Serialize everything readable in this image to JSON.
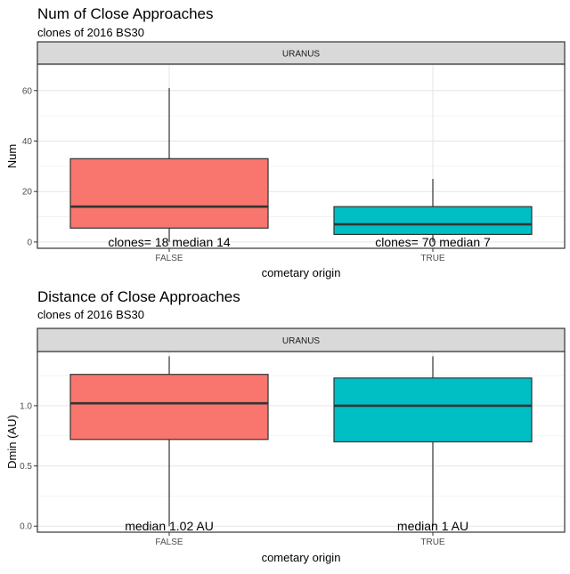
{
  "chart_data": [
    {
      "type": "boxplot",
      "title": "Num of Close Approaches",
      "subtitle": "clones of 2016 BS30",
      "facet_label": "URANUS",
      "xlabel": "cometary origin",
      "ylabel": "Num",
      "ylim": [
        -2.5,
        70.5
      ],
      "yticks": [
        0,
        20,
        40,
        60
      ],
      "ytick_labels": [
        "0",
        "20",
        "40",
        "60"
      ],
      "grid": true,
      "categories": [
        "FALSE",
        "TRUE"
      ],
      "boxes": [
        {
          "category": "FALSE",
          "min": 0,
          "q1": 5.5,
          "median": 14,
          "q3": 33,
          "max": 61,
          "color": "#F8766D",
          "annotation": "clones= 18 median 14"
        },
        {
          "category": "TRUE",
          "min": 0,
          "q1": 3,
          "median": 7,
          "q3": 14,
          "max": 25,
          "color": "#00BFC4",
          "annotation": "clones= 70 median 7"
        }
      ],
      "annotation_y": 0
    },
    {
      "type": "boxplot",
      "title": "Distance of Close Approaches",
      "subtitle": "clones of 2016 BS30",
      "facet_label": "URANUS",
      "xlabel": "cometary origin",
      "ylabel": "Dmin (AU)",
      "ylim": [
        -0.05,
        1.45
      ],
      "yticks": [
        0.0,
        0.5,
        1.0
      ],
      "ytick_labels": [
        "0.0",
        "0.5",
        "1.0"
      ],
      "grid": true,
      "categories": [
        "FALSE",
        "TRUE"
      ],
      "boxes": [
        {
          "category": "FALSE",
          "min": 0.0,
          "q1": 0.72,
          "median": 1.02,
          "q3": 1.26,
          "max": 1.41,
          "color": "#F8766D",
          "annotation": "median 1.02 AU"
        },
        {
          "category": "TRUE",
          "min": 0.0,
          "q1": 0.7,
          "median": 1.0,
          "q3": 1.23,
          "max": 1.41,
          "color": "#00BFC4",
          "annotation": "median 1 AU"
        }
      ],
      "annotation_y": 0.0
    }
  ]
}
